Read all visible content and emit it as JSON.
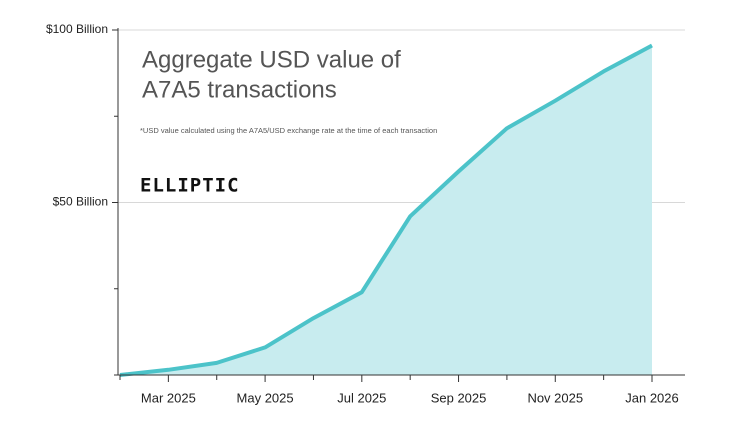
{
  "chart_data": {
    "type": "area",
    "title_lines": [
      "Aggregate USD value of",
      "A7A5 transactions"
    ],
    "note": "*USD value calculated using the A7A5/USD exchange rate at the time of each transaction",
    "logo": "ELLIPTIC",
    "x": [
      "2025-02",
      "2025-03",
      "2025-04",
      "2025-05",
      "2025-06",
      "2025-07",
      "2025-08",
      "2025-09",
      "2025-10",
      "2025-11",
      "2025-12",
      "2026-01"
    ],
    "values": [
      0,
      1.5,
      3.5,
      8,
      16.5,
      24,
      46,
      59,
      71.5,
      79.5,
      88,
      95.5
    ],
    "color": "#4cc3c9",
    "fill": "#c8ecef",
    "xlim": [
      "2025-02",
      "2026-01"
    ],
    "xticks": [
      {
        "value": "2025-03",
        "label": "Mar 2025"
      },
      {
        "value": "2025-05",
        "label": "May 2025"
      },
      {
        "value": "2025-07",
        "label": "Jul 2025"
      },
      {
        "value": "2025-09",
        "label": "Sep 2025"
      },
      {
        "value": "2025-11",
        "label": "Nov 2025"
      },
      {
        "value": "2026-01",
        "label": "Jan 2026"
      }
    ],
    "xminor_ticks": [
      "2025-02",
      "2025-04",
      "2025-06",
      "2025-08",
      "2025-10",
      "2025-12"
    ],
    "ylim": [
      0,
      100
    ],
    "yticks": [
      {
        "value": 50,
        "label": "$50 Billion"
      },
      {
        "value": 100,
        "label": "$100 Billion"
      }
    ],
    "yminor_ticks": [
      0,
      25,
      75
    ],
    "grid": true
  }
}
